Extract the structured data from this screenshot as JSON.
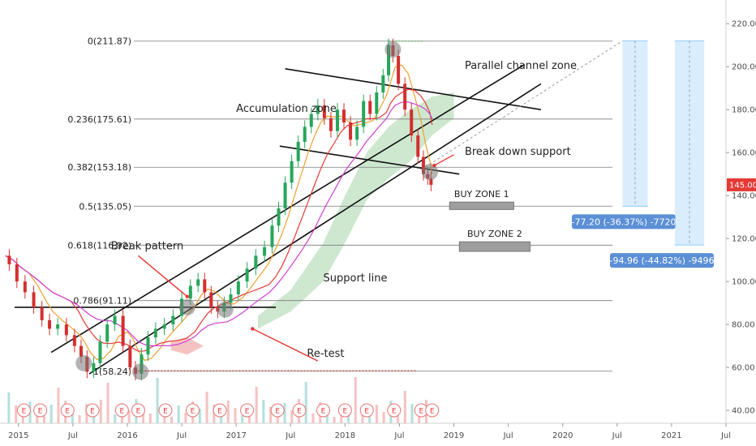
{
  "chart_data": {
    "type": "line",
    "y_axis": {
      "range": [
        34,
        228
      ],
      "ticks": [
        "40.00",
        "60.00",
        "80.00",
        "100.00",
        "120.00",
        "140.00",
        "160.00",
        "180.00",
        "200.00",
        "220.00"
      ],
      "tick_values": [
        40,
        60,
        80,
        100,
        120,
        140,
        160,
        180,
        200,
        220
      ],
      "position": "right"
    },
    "x_axis": {
      "range": [
        2014.83,
        2021.5
      ],
      "ticks": [
        {
          "label": "2015",
          "t": 2015.0
        },
        {
          "label": "Jul",
          "t": 2015.5
        },
        {
          "label": "2016",
          "t": 2016.0
        },
        {
          "label": "Jul",
          "t": 2016.5
        },
        {
          "label": "2017",
          "t": 2017.0
        },
        {
          "label": "Jul",
          "t": 2017.5
        },
        {
          "label": "2018",
          "t": 2018.0
        },
        {
          "label": "Jul",
          "t": 2018.5
        },
        {
          "label": "2019",
          "t": 2019.0
        },
        {
          "label": "Jul",
          "t": 2019.5
        },
        {
          "label": "2020",
          "t": 2020.0
        },
        {
          "label": "Jul",
          "t": 2020.5
        },
        {
          "label": "2021",
          "t": 2021.0
        },
        {
          "label": "Jul",
          "t": 2021.5
        }
      ]
    },
    "last_price": {
      "label": "145.00",
      "value": 145.0,
      "color": "#e53935"
    },
    "price_path": [
      [
        2014.88,
        112
      ],
      [
        2014.95,
        108
      ],
      [
        2015.02,
        100
      ],
      [
        2015.1,
        95
      ],
      [
        2015.18,
        88
      ],
      [
        2015.25,
        82
      ],
      [
        2015.32,
        78
      ],
      [
        2015.4,
        80
      ],
      [
        2015.48,
        75
      ],
      [
        2015.55,
        70
      ],
      [
        2015.6,
        65
      ],
      [
        2015.66,
        58
      ],
      [
        2015.72,
        62
      ],
      [
        2015.78,
        72
      ],
      [
        2015.85,
        80
      ],
      [
        2015.92,
        84
      ],
      [
        2016.0,
        70
      ],
      [
        2016.05,
        60
      ],
      [
        2016.1,
        57
      ],
      [
        2016.16,
        66
      ],
      [
        2016.22,
        74
      ],
      [
        2016.3,
        78
      ],
      [
        2016.38,
        80
      ],
      [
        2016.46,
        84
      ],
      [
        2016.54,
        92
      ],
      [
        2016.62,
        98
      ],
      [
        2016.68,
        101
      ],
      [
        2016.74,
        95
      ],
      [
        2016.8,
        88
      ],
      [
        2016.86,
        86
      ],
      [
        2016.92,
        90
      ],
      [
        2016.98,
        94
      ],
      [
        2017.06,
        100
      ],
      [
        2017.14,
        106
      ],
      [
        2017.22,
        112
      ],
      [
        2017.3,
        116
      ],
      [
        2017.36,
        126
      ],
      [
        2017.42,
        134
      ],
      [
        2017.48,
        146
      ],
      [
        2017.54,
        156
      ],
      [
        2017.6,
        165
      ],
      [
        2017.66,
        172
      ],
      [
        2017.72,
        178
      ],
      [
        2017.78,
        182
      ],
      [
        2017.84,
        176
      ],
      [
        2017.9,
        170
      ],
      [
        2017.96,
        180
      ],
      [
        2018.02,
        174
      ],
      [
        2018.08,
        166
      ],
      [
        2018.14,
        172
      ],
      [
        2018.2,
        184
      ],
      [
        2018.26,
        178
      ],
      [
        2018.32,
        188
      ],
      [
        2018.38,
        196
      ],
      [
        2018.42,
        210
      ],
      [
        2018.46,
        205
      ],
      [
        2018.52,
        192
      ],
      [
        2018.58,
        180
      ],
      [
        2018.64,
        168
      ],
      [
        2018.7,
        158
      ],
      [
        2018.74,
        150
      ],
      [
        2018.78,
        148
      ],
      [
        2018.8,
        145
      ]
    ],
    "fib_levels": [
      {
        "label": "0(211.87)",
        "value": 211.87
      },
      {
        "label": "0.236(175.61)",
        "value": 175.61
      },
      {
        "label": "0.382(153.18)",
        "value": 153.18
      },
      {
        "label": "0.5(135.05)",
        "value": 135.05
      },
      {
        "label": "0.618(116.92)",
        "value": 116.92
      },
      {
        "label": "0.786(91.11)",
        "value": 91.11
      },
      {
        "label": "1(58.24)",
        "value": 58.24
      }
    ],
    "annotations": [
      {
        "text": "Parallel channel zone",
        "x": 2019.1,
        "y": 199
      },
      {
        "text": "Accumulation zone",
        "x": 2017.0,
        "y": 179
      },
      {
        "text": "Break down support",
        "x": 2019.1,
        "y": 159
      },
      {
        "text": "Break pattern",
        "x": 2015.85,
        "y": 115
      },
      {
        "text": "Support line",
        "x": 2017.8,
        "y": 100
      },
      {
        "text": "Re-test",
        "x": 2017.65,
        "y": 65
      }
    ],
    "buy_zones": [
      {
        "label": "BUY ZONE 1",
        "x0": 2018.96,
        "x1": 2019.55,
        "y0": 133.5,
        "y1": 137.0
      },
      {
        "label": "BUY ZONE 2",
        "x0": 2019.05,
        "x1": 2019.7,
        "y0": 114.0,
        "y1": 118.5
      }
    ],
    "measure_boxes": [
      {
        "label": "-77.20 (-36.37%) -7720",
        "x0": 2020.55,
        "x1": 2020.78,
        "y_top": 212,
        "y_bottom": 135
      },
      {
        "label": "-94.96 (-44.82%) -9496",
        "x0": 2021.03,
        "x1": 2021.3,
        "y_top": 212,
        "y_bottom": 117
      }
    ],
    "event_markers": {
      "label": "E",
      "count": 18
    }
  }
}
